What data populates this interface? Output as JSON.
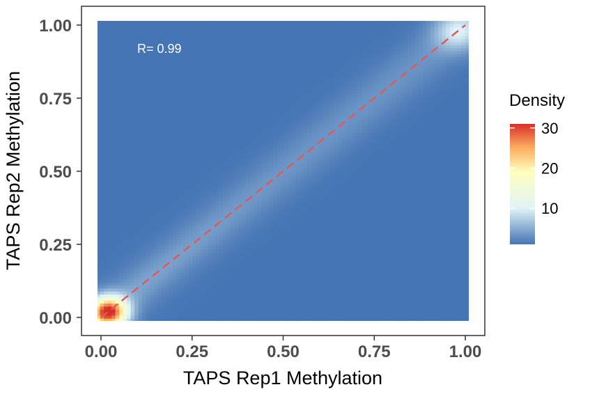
{
  "chart_data": {
    "type": "heatmap",
    "title": "",
    "xlabel": "TAPS Rep1 Methylation",
    "ylabel": "TAPS Rep2 Methylation",
    "xlim": [
      0,
      1
    ],
    "ylim": [
      0,
      1
    ],
    "x_ticks": [
      "0.00",
      "0.25",
      "0.50",
      "0.75",
      "1.00"
    ],
    "y_ticks": [
      "0.00",
      "0.25",
      "0.50",
      "0.75",
      "1.00"
    ],
    "grid": false,
    "annotation": "R= 0.99",
    "reference_line": {
      "style": "dashed",
      "color": "#e05a5a",
      "from": [
        0,
        0
      ],
      "to": [
        1,
        1
      ]
    },
    "density_peaks": [
      {
        "x": 0.02,
        "y": 0.02,
        "density": 30
      },
      {
        "x": 0.98,
        "y": 0.98,
        "density": 10
      }
    ],
    "legend": {
      "title": "Density",
      "placement": "right",
      "ticks": [
        "10",
        "20",
        "30"
      ],
      "range": [
        1,
        31
      ]
    },
    "colors": {
      "low": "#4575b4",
      "mid_low": "#e0f3f8",
      "mid": "#ffffbf",
      "mid_high": "#fdae61",
      "high": "#d73027",
      "reference_line": "#e05a5a"
    }
  }
}
